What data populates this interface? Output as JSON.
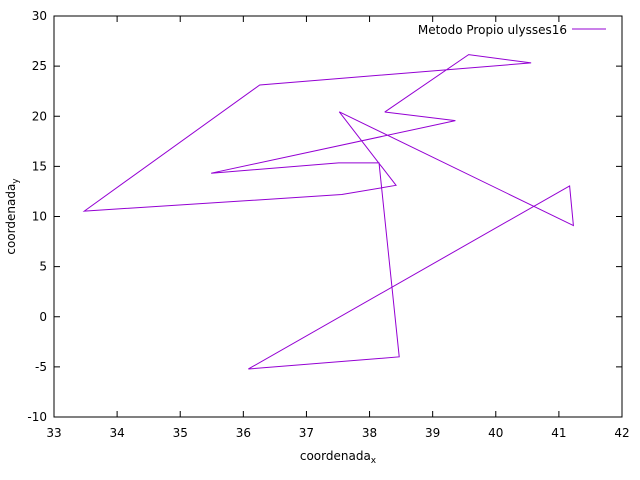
{
  "chart_data": {
    "type": "line",
    "xlabel": "coordenada",
    "xlabel_sub": "x",
    "ylabel": "coordenada",
    "ylabel_sub": "y",
    "xlim": [
      33,
      42
    ],
    "ylim": [
      -10,
      30
    ],
    "xticks": [
      "33",
      "34",
      "35",
      "36",
      "37",
      "38",
      "39",
      "40",
      "41",
      "42"
    ],
    "yticks": [
      "-10",
      "-5",
      "0",
      "5",
      "10",
      "15",
      "20",
      "25",
      "30"
    ],
    "grid": false,
    "legend_position": "top-right",
    "series": [
      {
        "name": "Metodo Propio ulysses16",
        "color": "#9400d3",
        "x": [
          38.24,
          39.57,
          40.56,
          36.26,
          33.48,
          37.56,
          38.42,
          37.52,
          41.23,
          41.17,
          36.08,
          38.47,
          38.15,
          37.51,
          35.49,
          39.36,
          38.24
        ],
        "y": [
          20.42,
          26.15,
          25.32,
          23.12,
          10.54,
          12.19,
          13.11,
          20.44,
          9.1,
          13.05,
          -5.21,
          -4.0,
          15.35,
          15.35,
          14.32,
          19.56,
          20.42
        ]
      }
    ]
  }
}
